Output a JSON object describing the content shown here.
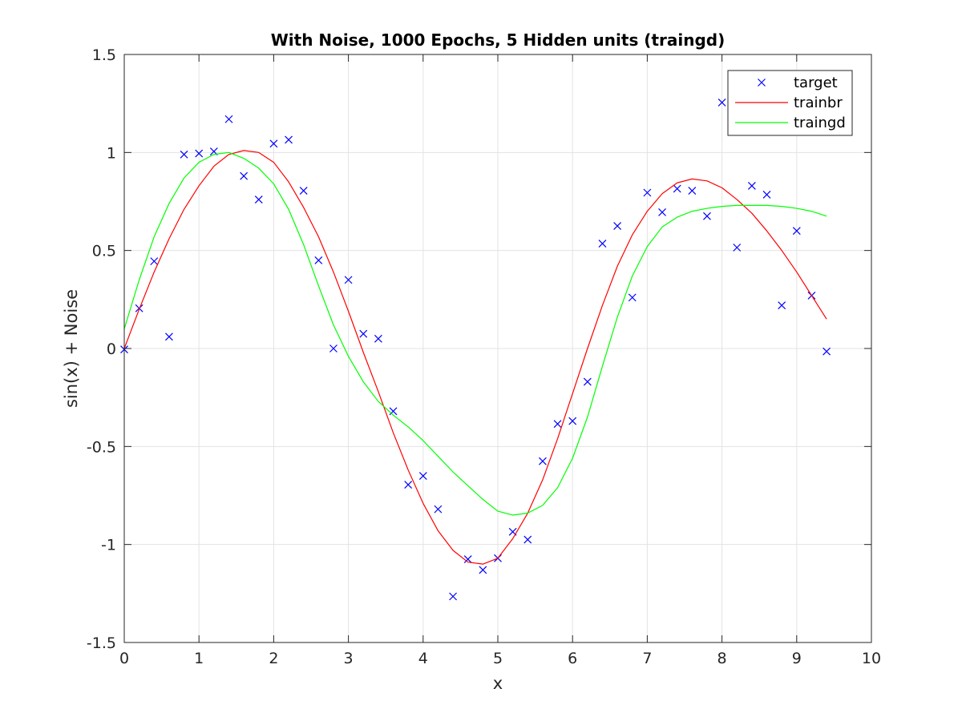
{
  "chart_data": {
    "type": "line",
    "title": "With Noise, 1000 Epochs, 5 Hidden units (traingd)",
    "xlabel": "x",
    "ylabel": "sin(x) + Noise",
    "xlim": [
      0,
      10
    ],
    "ylim": [
      -1.5,
      1.5
    ],
    "grid": true,
    "legend_position": "top-right",
    "x_ticks": [
      0,
      1,
      2,
      3,
      4,
      5,
      6,
      7,
      8,
      9,
      10
    ],
    "x_tick_labels": [
      "0",
      "1",
      "2",
      "3",
      "4",
      "5",
      "6",
      "7",
      "8",
      "9",
      "10"
    ],
    "y_ticks": [
      -1.5,
      -1,
      -0.5,
      0,
      0.5,
      1,
      1.5
    ],
    "y_tick_labels": [
      "-1.5",
      "-1",
      "-0.5",
      "0",
      "0.5",
      "1",
      "1.5"
    ],
    "series": [
      {
        "name": "target",
        "kind": "scatter",
        "marker": "x",
        "color": "#0000ff",
        "x": [
          0,
          0.2,
          0.4,
          0.6,
          0.8,
          1.0,
          1.2,
          1.4,
          1.6,
          1.8,
          2.0,
          2.2,
          2.4,
          2.6,
          2.8,
          3.0,
          3.2,
          3.4,
          3.6,
          3.8,
          4.0,
          4.2,
          4.4,
          4.6,
          4.8,
          5.0,
          5.2,
          5.4,
          5.6,
          5.8,
          6.0,
          6.2,
          6.4,
          6.6,
          6.8,
          7.0,
          7.2,
          7.4,
          7.6,
          7.8,
          8.0,
          8.2,
          8.4,
          8.6,
          8.8,
          9.0,
          9.2,
          9.4
        ],
        "y": [
          -0.005,
          0.205,
          0.445,
          0.06,
          0.99,
          0.995,
          1.005,
          1.17,
          0.88,
          0.76,
          1.045,
          1.065,
          0.805,
          0.45,
          0.0,
          0.35,
          0.075,
          0.05,
          -0.32,
          -0.695,
          -0.65,
          -0.82,
          -1.265,
          -1.075,
          -1.13,
          -1.07,
          -0.935,
          -0.975,
          -0.575,
          -0.385,
          -0.37,
          -0.17,
          0.535,
          0.625,
          0.26,
          0.795,
          0.695,
          0.815,
          0.805,
          0.675,
          1.255,
          0.515,
          0.83,
          0.785,
          0.22,
          0.6,
          0.27,
          -0.015
        ]
      },
      {
        "name": "trainbr",
        "kind": "line",
        "color": "#ff0000",
        "x": [
          0,
          0.2,
          0.4,
          0.6,
          0.8,
          1.0,
          1.2,
          1.4,
          1.6,
          1.8,
          2.0,
          2.2,
          2.4,
          2.6,
          2.8,
          3.0,
          3.2,
          3.4,
          3.6,
          3.8,
          4.0,
          4.2,
          4.4,
          4.6,
          4.8,
          5.0,
          5.2,
          5.4,
          5.6,
          5.8,
          6.0,
          6.2,
          6.4,
          6.6,
          6.8,
          7.0,
          7.2,
          7.4,
          7.6,
          7.8,
          8.0,
          8.2,
          8.4,
          8.6,
          8.8,
          9.0,
          9.2,
          9.4
        ],
        "y": [
          0.0,
          0.2,
          0.39,
          0.56,
          0.71,
          0.83,
          0.93,
          0.99,
          1.01,
          1.0,
          0.95,
          0.85,
          0.72,
          0.57,
          0.39,
          0.19,
          -0.02,
          -0.22,
          -0.43,
          -0.62,
          -0.79,
          -0.93,
          -1.03,
          -1.09,
          -1.1,
          -1.07,
          -0.97,
          -0.84,
          -0.67,
          -0.46,
          -0.23,
          0.0,
          0.22,
          0.42,
          0.58,
          0.7,
          0.79,
          0.845,
          0.865,
          0.855,
          0.82,
          0.76,
          0.69,
          0.6,
          0.5,
          0.39,
          0.27,
          0.15
        ]
      },
      {
        "name": "traingd",
        "kind": "line",
        "color": "#00ff00",
        "x": [
          0,
          0.2,
          0.4,
          0.6,
          0.8,
          1.0,
          1.2,
          1.4,
          1.6,
          1.8,
          2.0,
          2.2,
          2.4,
          2.6,
          2.8,
          3.0,
          3.2,
          3.4,
          3.6,
          3.8,
          4.0,
          4.2,
          4.4,
          4.6,
          4.8,
          5.0,
          5.2,
          5.4,
          5.6,
          5.8,
          6.0,
          6.2,
          6.4,
          6.6,
          6.8,
          7.0,
          7.2,
          7.4,
          7.6,
          7.8,
          8.0,
          8.2,
          8.4,
          8.6,
          8.8,
          9.0,
          9.2,
          9.4
        ],
        "y": [
          0.1,
          0.35,
          0.57,
          0.74,
          0.87,
          0.95,
          0.99,
          1.0,
          0.97,
          0.92,
          0.84,
          0.71,
          0.53,
          0.32,
          0.12,
          -0.04,
          -0.17,
          -0.27,
          -0.34,
          -0.4,
          -0.47,
          -0.55,
          -0.63,
          -0.7,
          -0.77,
          -0.83,
          -0.85,
          -0.84,
          -0.8,
          -0.71,
          -0.56,
          -0.35,
          -0.09,
          0.16,
          0.37,
          0.52,
          0.62,
          0.67,
          0.7,
          0.715,
          0.725,
          0.73,
          0.73,
          0.73,
          0.725,
          0.715,
          0.7,
          0.675
        ]
      }
    ]
  }
}
